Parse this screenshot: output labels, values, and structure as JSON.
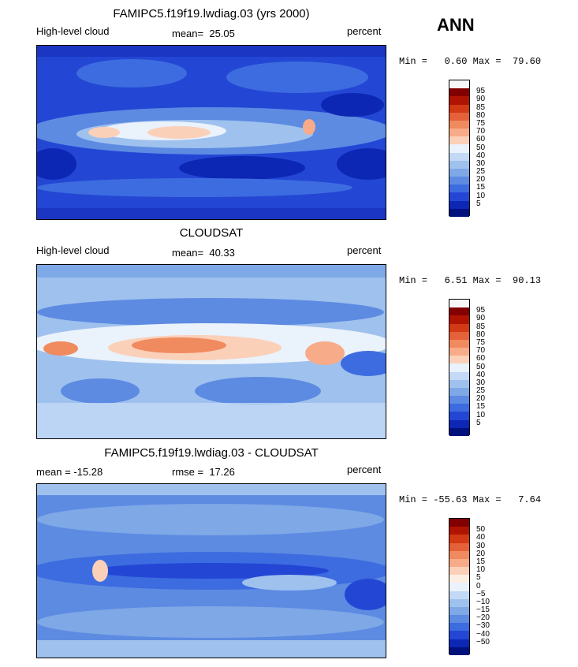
{
  "season": "ANN",
  "panels": [
    {
      "title": "FAMIPC5.f19f19.lwdiag.03 (yrs 2000)",
      "left_label": "High-level cloud",
      "center_label": "mean=  25.05",
      "units": "percent",
      "minmax": "Min =   0.60 Max =  79.60",
      "colorbar": {
        "colors": [
          "#f7f7f7",
          "#830000",
          "#b01400",
          "#d13a14",
          "#e4613a",
          "#f08a5f",
          "#f7ab88",
          "#fbd0b9",
          "#eaf2fb",
          "#c3d9f5",
          "#9fc1ee",
          "#7ea8e6",
          "#5d8be2",
          "#3d6ce0",
          "#2347d4",
          "#0c27b4",
          "#00107d"
        ],
        "levels": [
          "95",
          "90",
          "85",
          "80",
          "75",
          "70",
          "60",
          "50",
          "40",
          "30",
          "25",
          "20",
          "15",
          "10",
          "5"
        ]
      }
    },
    {
      "title": "CLOUDSAT",
      "left_label": "High-level cloud",
      "center_label": "mean=  40.33",
      "units": "percent",
      "minmax": "Min =   6.51 Max =  90.13",
      "colorbar": {
        "colors": [
          "#f7f7f7",
          "#830000",
          "#b01400",
          "#d13a14",
          "#e4613a",
          "#f08a5f",
          "#f7ab88",
          "#fbd0b9",
          "#eaf2fb",
          "#c3d9f5",
          "#9fc1ee",
          "#7ea8e6",
          "#5d8be2",
          "#3d6ce0",
          "#2347d4",
          "#0c27b4",
          "#00107d"
        ],
        "levels": [
          "95",
          "90",
          "85",
          "80",
          "75",
          "70",
          "60",
          "50",
          "40",
          "30",
          "25",
          "20",
          "15",
          "10",
          "5"
        ]
      }
    },
    {
      "title": "FAMIPC5.f19f19.lwdiag.03 - CLOUDSAT",
      "left_label": "mean = -15.28",
      "center_label": "rmse =  17.26",
      "units": "percent",
      "minmax": "Min = -55.63 Max =   7.64",
      "colorbar": {
        "colors": [
          "#830000",
          "#b01400",
          "#d13a14",
          "#e4613a",
          "#f08a5f",
          "#f7ab88",
          "#fbd0b9",
          "#fdeee3",
          "#eaf2fb",
          "#c3d9f5",
          "#9fc1ee",
          "#7ea8e6",
          "#5d8be2",
          "#3d6ce0",
          "#2347d4",
          "#0c27b4",
          "#00107d"
        ],
        "levels": [
          "50",
          "40",
          "30",
          "20",
          "15",
          "10",
          "5",
          "0",
          "−5",
          "−10",
          "−15",
          "−20",
          "−30",
          "−40",
          "−50"
        ]
      }
    }
  ]
}
